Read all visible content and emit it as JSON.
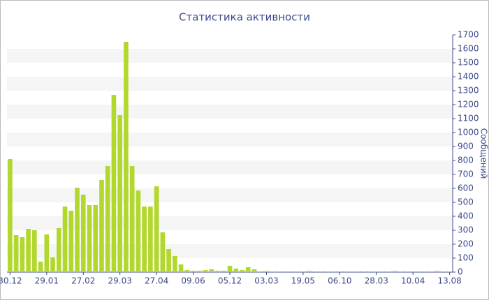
{
  "chart_data": {
    "type": "bar",
    "title": "Статистика активности",
    "y_label": "Сообщений",
    "categories": [
      "30.12",
      null,
      null,
      null,
      null,
      null,
      "29.01",
      null,
      null,
      null,
      null,
      null,
      "27.02",
      null,
      null,
      null,
      null,
      null,
      "29.03",
      null,
      null,
      null,
      null,
      null,
      "27.04",
      null,
      null,
      null,
      null,
      null,
      "09.06",
      null,
      null,
      null,
      null,
      null,
      "05.12",
      null,
      null,
      null,
      null,
      null,
      "03.03",
      null,
      null,
      null,
      null,
      null,
      "19.05",
      null,
      null,
      null,
      null,
      null,
      "06.10",
      null,
      null,
      null,
      null,
      null,
      "28.03",
      null,
      null,
      null,
      null,
      null,
      "10.04",
      null,
      null,
      null,
      null,
      null,
      "13.08"
    ],
    "values": [
      810,
      265,
      250,
      310,
      300,
      75,
      270,
      105,
      315,
      470,
      440,
      605,
      555,
      480,
      480,
      660,
      760,
      1270,
      1125,
      1650,
      760,
      585,
      470,
      470,
      615,
      285,
      165,
      115,
      55,
      15,
      10,
      10,
      15,
      20,
      10,
      10,
      45,
      25,
      15,
      35,
      20,
      5,
      8,
      5,
      5,
      5,
      5,
      5,
      5,
      8,
      5,
      5,
      5,
      5,
      5,
      5,
      5,
      5,
      5,
      5,
      5,
      5,
      5,
      8,
      5,
      5,
      5,
      5,
      5,
      5,
      8,
      5,
      5
    ],
    "color": "#b2d82e",
    "ylim": [
      0,
      1700
    ],
    "yticks": [
      0,
      100,
      200,
      300,
      400,
      500,
      600,
      700,
      800,
      900,
      1000,
      1100,
      1200,
      1300,
      1400,
      1500,
      1600,
      1700
    ],
    "y_axis_side": "right",
    "grid": true
  }
}
